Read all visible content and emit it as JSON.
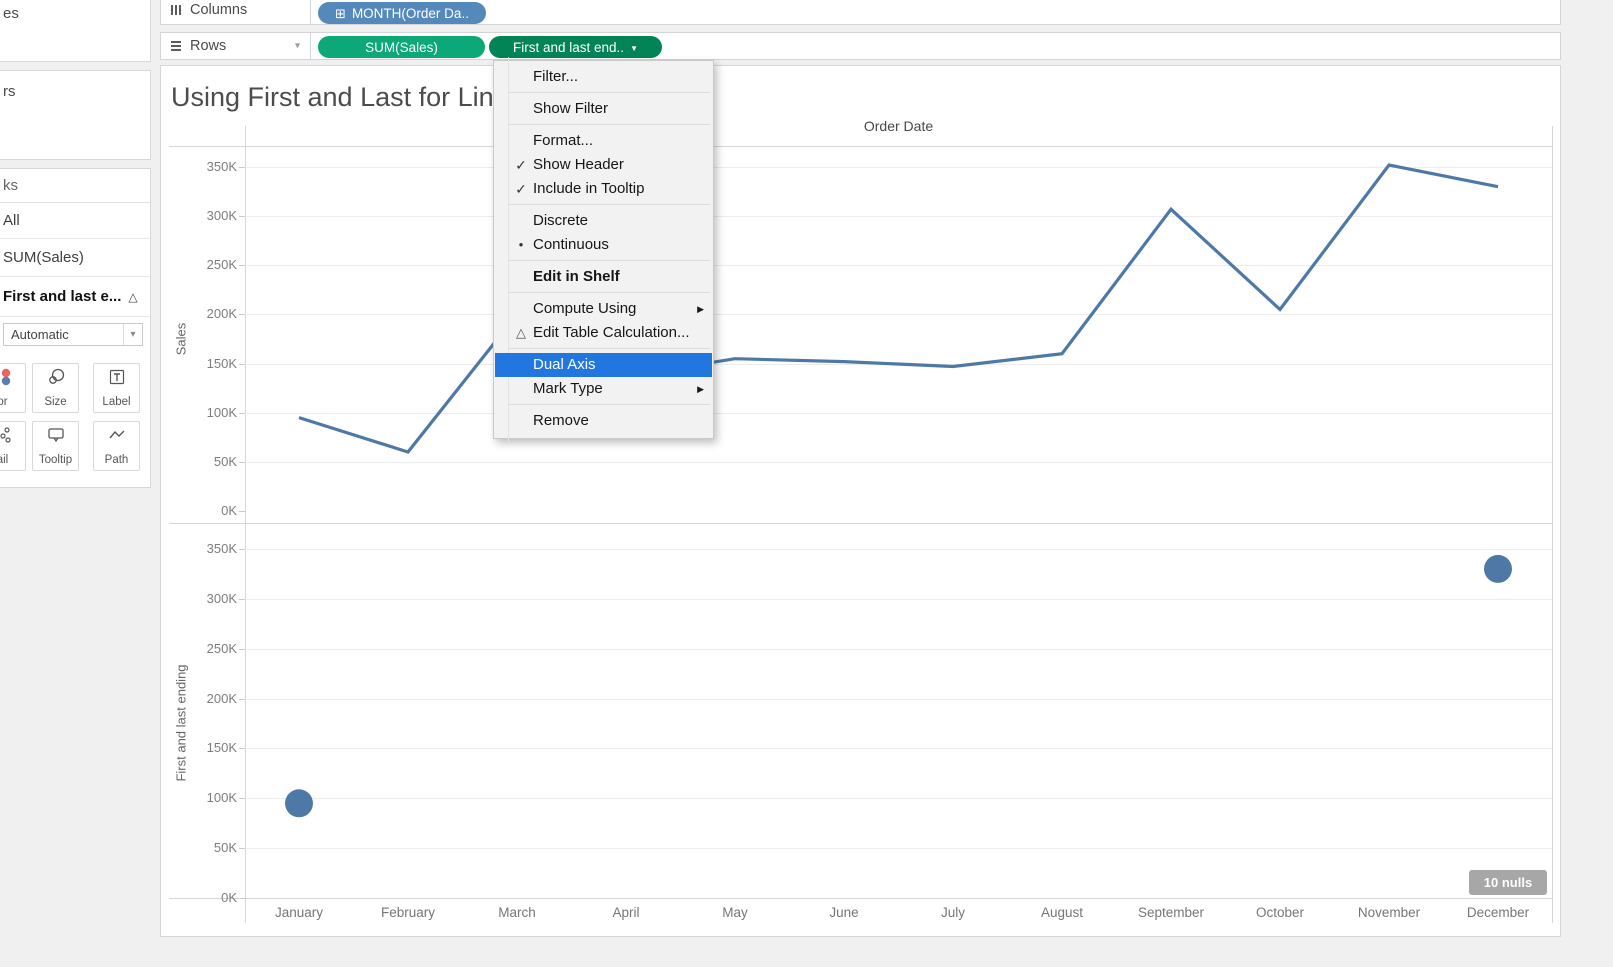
{
  "colors": {
    "dimension_pill_blue": "#5588BB",
    "measure_pill_green": "#0CA878",
    "active_pill_green_dark": "#028457",
    "line": "#4E79A7",
    "mark_circle": "#4E79A7",
    "menu_highlight": "#2176DF",
    "nulls_badge_bg": "#A7A7A7"
  },
  "shelves": {
    "columns": {
      "label": "Columns",
      "pills": [
        {
          "label": "MONTH(Order Da..",
          "icon": "plus-box-icon"
        }
      ]
    },
    "rows": {
      "label": "Rows",
      "pills": [
        {
          "label": "SUM(Sales)"
        },
        {
          "label": "First and last end..",
          "caret": "▼"
        }
      ]
    }
  },
  "sidebar": {
    "pages_panel_text": "es",
    "filters_panel_text": "rs",
    "marks_panel_text": "ks",
    "marks_items": [
      {
        "label": "All",
        "selected": false,
        "delta": false
      },
      {
        "label": "SUM(Sales)",
        "selected": false,
        "delta": false
      },
      {
        "label": "First and last e...",
        "selected": true,
        "delta": true
      }
    ],
    "mark_type_value": "Automatic",
    "buttons": [
      {
        "label": "or",
        "icon": "color-icon"
      },
      {
        "label": "Size",
        "icon": "size-icon"
      },
      {
        "label": "Label",
        "icon": "label-icon"
      },
      {
        "label": "ail",
        "icon": "detail-icon"
      },
      {
        "label": "Tooltip",
        "icon": "tooltip-icon"
      },
      {
        "label": "Path",
        "icon": "path-icon"
      }
    ]
  },
  "sheet": {
    "title": "Using First and Last for Line",
    "column_header": "Order Date",
    "nulls_badge": "10 nulls"
  },
  "context_menu": {
    "items": [
      {
        "label": "Filter...",
        "sep_after": true
      },
      {
        "label": "Show Filter",
        "sep_after": true
      },
      {
        "label": "Format..."
      },
      {
        "label": "Show Header",
        "checked": true
      },
      {
        "label": "Include in Tooltip",
        "checked": true,
        "sep_after": true
      },
      {
        "label": "Discrete"
      },
      {
        "label": "Continuous",
        "bullet": true,
        "sep_after": true
      },
      {
        "label": "Edit in Shelf",
        "bold": true,
        "sep_after": true
      },
      {
        "label": "Compute Using",
        "submenu": true
      },
      {
        "label": "Edit Table Calculation...",
        "delta": true,
        "sep_after": true
      },
      {
        "label": "Dual Axis",
        "highlighted": true
      },
      {
        "label": "Mark Type",
        "submenu": true,
        "sep_after": true
      },
      {
        "label": "Remove"
      }
    ]
  },
  "chart_data": [
    {
      "type": "line",
      "title": "Using First and Last for Line",
      "xlabel": "Order Date",
      "ylabel": "Sales",
      "categories": [
        "January",
        "February",
        "March",
        "April",
        "May",
        "June",
        "July",
        "August",
        "September",
        "October",
        "November",
        "December"
      ],
      "values_k": [
        95,
        60,
        200,
        137,
        155,
        152,
        147,
        160,
        307,
        205,
        352,
        330
      ],
      "ylim_k": [
        0,
        360
      ],
      "yticks_k": [
        0,
        50,
        100,
        150,
        200,
        250,
        300,
        350
      ],
      "ytick_labels": [
        "0K",
        "50K",
        "100K",
        "150K",
        "200K",
        "250K",
        "300K",
        "350K"
      ],
      "grid": true,
      "legend": "none",
      "line_color": "#4E79A7"
    },
    {
      "type": "scatter",
      "ylabel": "First and last ending",
      "categories": [
        "January",
        "February",
        "March",
        "April",
        "May",
        "June",
        "July",
        "August",
        "September",
        "October",
        "November",
        "December"
      ],
      "points": [
        {
          "category": "January",
          "value_k": 95
        },
        {
          "category": "December",
          "value_k": 330
        }
      ],
      "ylim_k": [
        0,
        360
      ],
      "yticks_k": [
        0,
        50,
        100,
        150,
        200,
        250,
        300,
        350
      ],
      "ytick_labels": [
        "0K",
        "50K",
        "100K",
        "150K",
        "200K",
        "250K",
        "300K",
        "350K"
      ],
      "grid": true,
      "nulls_indicator": "10 nulls",
      "marker_color": "#4E79A7"
    }
  ]
}
